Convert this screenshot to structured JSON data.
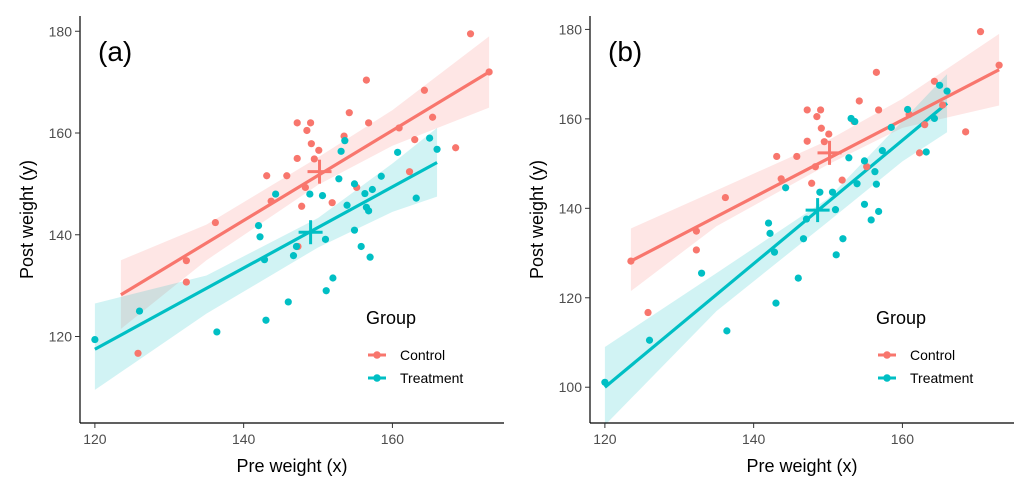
{
  "colors": {
    "control": "#F8766D",
    "treatment": "#00BFC4"
  },
  "chart_data": [
    {
      "type": "scatter",
      "panel_label": "(a)",
      "xlabel": "Pre weight (x)",
      "ylabel": "Post weight (y)",
      "xlim": [
        118,
        175
      ],
      "ylim": [
        103,
        183
      ],
      "xticks": [
        120,
        140,
        160
      ],
      "yticks": [
        120,
        140,
        160,
        180
      ],
      "legend": {
        "title": "Group",
        "position": "bottom-right",
        "entries": [
          "Control",
          "Treatment"
        ]
      },
      "series": [
        {
          "name": "Control",
          "color": "#F8766D",
          "points": [
            [
              125.8,
              116.7
            ],
            [
              132.3,
              134.9
            ],
            [
              132.3,
              130.7
            ],
            [
              136.2,
              142.4
            ],
            [
              143.1,
              151.6
            ],
            [
              143.7,
              146.6
            ],
            [
              145.8,
              151.6
            ],
            [
              147.2,
              162
            ],
            [
              147.2,
              155
            ],
            [
              147.3,
              137.7
            ],
            [
              147.8,
              145.6
            ],
            [
              148.3,
              149.3
            ],
            [
              148.5,
              160.5
            ],
            [
              149,
              162
            ],
            [
              149.1,
              157.9
            ],
            [
              149.5,
              154.9
            ],
            [
              150.1,
              156.6
            ],
            [
              151.9,
              146.3
            ],
            [
              153.5,
              159.4
            ],
            [
              154.2,
              164
            ],
            [
              155.2,
              149.3
            ],
            [
              156.5,
              170.4
            ],
            [
              156.8,
              162
            ],
            [
              160.9,
              161
            ],
            [
              162.3,
              152.4
            ],
            [
              163,
              158.7
            ],
            [
              164.3,
              168.4
            ],
            [
              165.4,
              163.1
            ],
            [
              168.5,
              157.1
            ],
            [
              170.5,
              179.5
            ],
            [
              173,
              172
            ]
          ],
          "fit": {
            "x": [
              123.5,
              173
            ],
            "y": [
              128.2,
              172
            ]
          },
          "ci": {
            "x": [
              123.5,
              135,
              150,
              160,
              173
            ],
            "lower": [
              121.5,
              135,
              149.8,
              157.5,
              165
            ],
            "upper": [
              135,
              142,
              155.2,
              164.5,
              179
            ]
          },
          "mean": {
            "x": 150.2,
            "y": 152.4
          }
        },
        {
          "name": "Treatment",
          "color": "#00BFC4",
          "points": [
            [
              120,
              119.4
            ],
            [
              126,
              125
            ],
            [
              136.4,
              120.9
            ],
            [
              142,
              141.8
            ],
            [
              142.2,
              139.6
            ],
            [
              142.8,
              135.1
            ],
            [
              143,
              123.2
            ],
            [
              144.3,
              148
            ],
            [
              146,
              126.8
            ],
            [
              146.7,
              135.9
            ],
            [
              147.1,
              137.7
            ],
            [
              148.9,
              148
            ],
            [
              150.6,
              147.7
            ],
            [
              151,
              139.1
            ],
            [
              151.1,
              129
            ],
            [
              152,
              131.5
            ],
            [
              152.8,
              151
            ],
            [
              153.1,
              156.4
            ],
            [
              153.9,
              145.8
            ],
            [
              153.6,
              158.5
            ],
            [
              154.9,
              150
            ],
            [
              154.9,
              140.9
            ],
            [
              155.8,
              137.7
            ],
            [
              156.3,
              148.1
            ],
            [
              156.5,
              145.4
            ],
            [
              156.8,
              144.7
            ],
            [
              157,
              135.6
            ],
            [
              157.3,
              148.9
            ],
            [
              158.5,
              151.5
            ],
            [
              160.7,
              156.2
            ],
            [
              163.2,
              147.2
            ],
            [
              165,
              159
            ],
            [
              166,
              156.8
            ]
          ],
          "fit": {
            "x": [
              120,
              166
            ],
            "y": [
              117.5,
              154.2
            ]
          },
          "ci": {
            "x": [
              120,
              135,
              150,
              160,
              166
            ],
            "lower": [
              109.5,
              124.5,
              137.5,
              144.5,
              147.5
            ],
            "upper": [
              126.5,
              132,
              143.3,
              154,
              161
            ]
          },
          "mean": {
            "x": 149,
            "y": 140.5
          }
        }
      ]
    },
    {
      "type": "scatter",
      "panel_label": "(b)",
      "xlabel": "Pre weight (x)",
      "ylabel": "Post weight (y)",
      "xlim": [
        118,
        175
      ],
      "ylim": [
        92,
        183
      ],
      "xticks": [
        120,
        140,
        160
      ],
      "yticks": [
        100,
        120,
        140,
        160,
        180
      ],
      "legend": {
        "title": "Group",
        "position": "bottom-right",
        "entries": [
          "Control",
          "Treatment"
        ]
      },
      "series": [
        {
          "name": "Control",
          "color": "#F8766D",
          "points": [
            [
              123.5,
              128.2
            ],
            [
              125.8,
              116.7
            ],
            [
              132.3,
              134.9
            ],
            [
              132.3,
              130.7
            ],
            [
              136.2,
              142.4
            ],
            [
              143.1,
              151.6
            ],
            [
              143.7,
              146.6
            ],
            [
              145.8,
              151.6
            ],
            [
              147.2,
              162
            ],
            [
              147.2,
              155
            ],
            [
              147.8,
              145.6
            ],
            [
              148.3,
              149.3
            ],
            [
              148.5,
              160.5
            ],
            [
              149,
              162
            ],
            [
              149.1,
              157.9
            ],
            [
              149.5,
              154.9
            ],
            [
              150.1,
              156.6
            ],
            [
              151.9,
              146.3
            ],
            [
              153.5,
              159.4
            ],
            [
              154.2,
              164
            ],
            [
              155.2,
              149.3
            ],
            [
              156.5,
              170.4
            ],
            [
              156.8,
              162
            ],
            [
              160.9,
              161
            ],
            [
              162.3,
              152.4
            ],
            [
              163,
              158.7
            ],
            [
              164.3,
              168.4
            ],
            [
              165.4,
              163.1
            ],
            [
              168.5,
              157.1
            ],
            [
              170.5,
              179.5
            ],
            [
              173,
              172
            ]
          ],
          "fit": {
            "x": [
              123.5,
              173
            ],
            "y": [
              128.2,
              171
            ]
          },
          "ci": {
            "x": [
              123.5,
              135,
              150,
              160,
              173
            ],
            "lower": [
              121.5,
              136,
              149.8,
              158,
              163
            ],
            "upper": [
              135.5,
              144,
              155.2,
              164.5,
              179
            ]
          },
          "mean": {
            "x": 150.2,
            "y": 152.4
          }
        },
        {
          "name": "Treatment",
          "color": "#00BFC4",
          "points": [
            [
              120,
              101.1
            ],
            [
              126,
              110.5
            ],
            [
              133,
              125.5
            ],
            [
              136.4,
              112.6
            ],
            [
              142,
              136.7
            ],
            [
              142.2,
              134.4
            ],
            [
              142.8,
              130.2
            ],
            [
              143,
              118.8
            ],
            [
              144.3,
              144.6
            ],
            [
              146,
              124.4
            ],
            [
              146.7,
              133.2
            ],
            [
              147.1,
              137.6
            ],
            [
              148.9,
              143.6
            ],
            [
              150.6,
              143.6
            ],
            [
              151,
              139.7
            ],
            [
              151.1,
              129.6
            ],
            [
              152,
              133.2
            ],
            [
              152.8,
              151.3
            ],
            [
              153.1,
              160.1
            ],
            [
              153.9,
              145.5
            ],
            [
              153.6,
              159.4
            ],
            [
              154.9,
              150.6
            ],
            [
              154.9,
              140.9
            ],
            [
              155.8,
              137.4
            ],
            [
              156.3,
              148.2
            ],
            [
              156.5,
              145.4
            ],
            [
              156.8,
              139.3
            ],
            [
              157.3,
              152.9
            ],
            [
              158.5,
              158.1
            ],
            [
              160.7,
              162.1
            ],
            [
              163.2,
              152.6
            ],
            [
              164.3,
              160.1
            ],
            [
              165,
              167.5
            ],
            [
              166,
              166.2
            ]
          ],
          "fit": {
            "x": [
              120,
              166
            ],
            "y": [
              100,
              163.5
            ]
          },
          "ci": {
            "x": [
              120,
              135,
              150,
              160,
              166
            ],
            "lower": [
              91.5,
              117,
              137,
              150.5,
              157
            ],
            "upper": [
              109,
              125.5,
              142.2,
              159.5,
              170
            ]
          },
          "mean": {
            "x": 148.6,
            "y": 139.6
          }
        }
      ]
    }
  ]
}
